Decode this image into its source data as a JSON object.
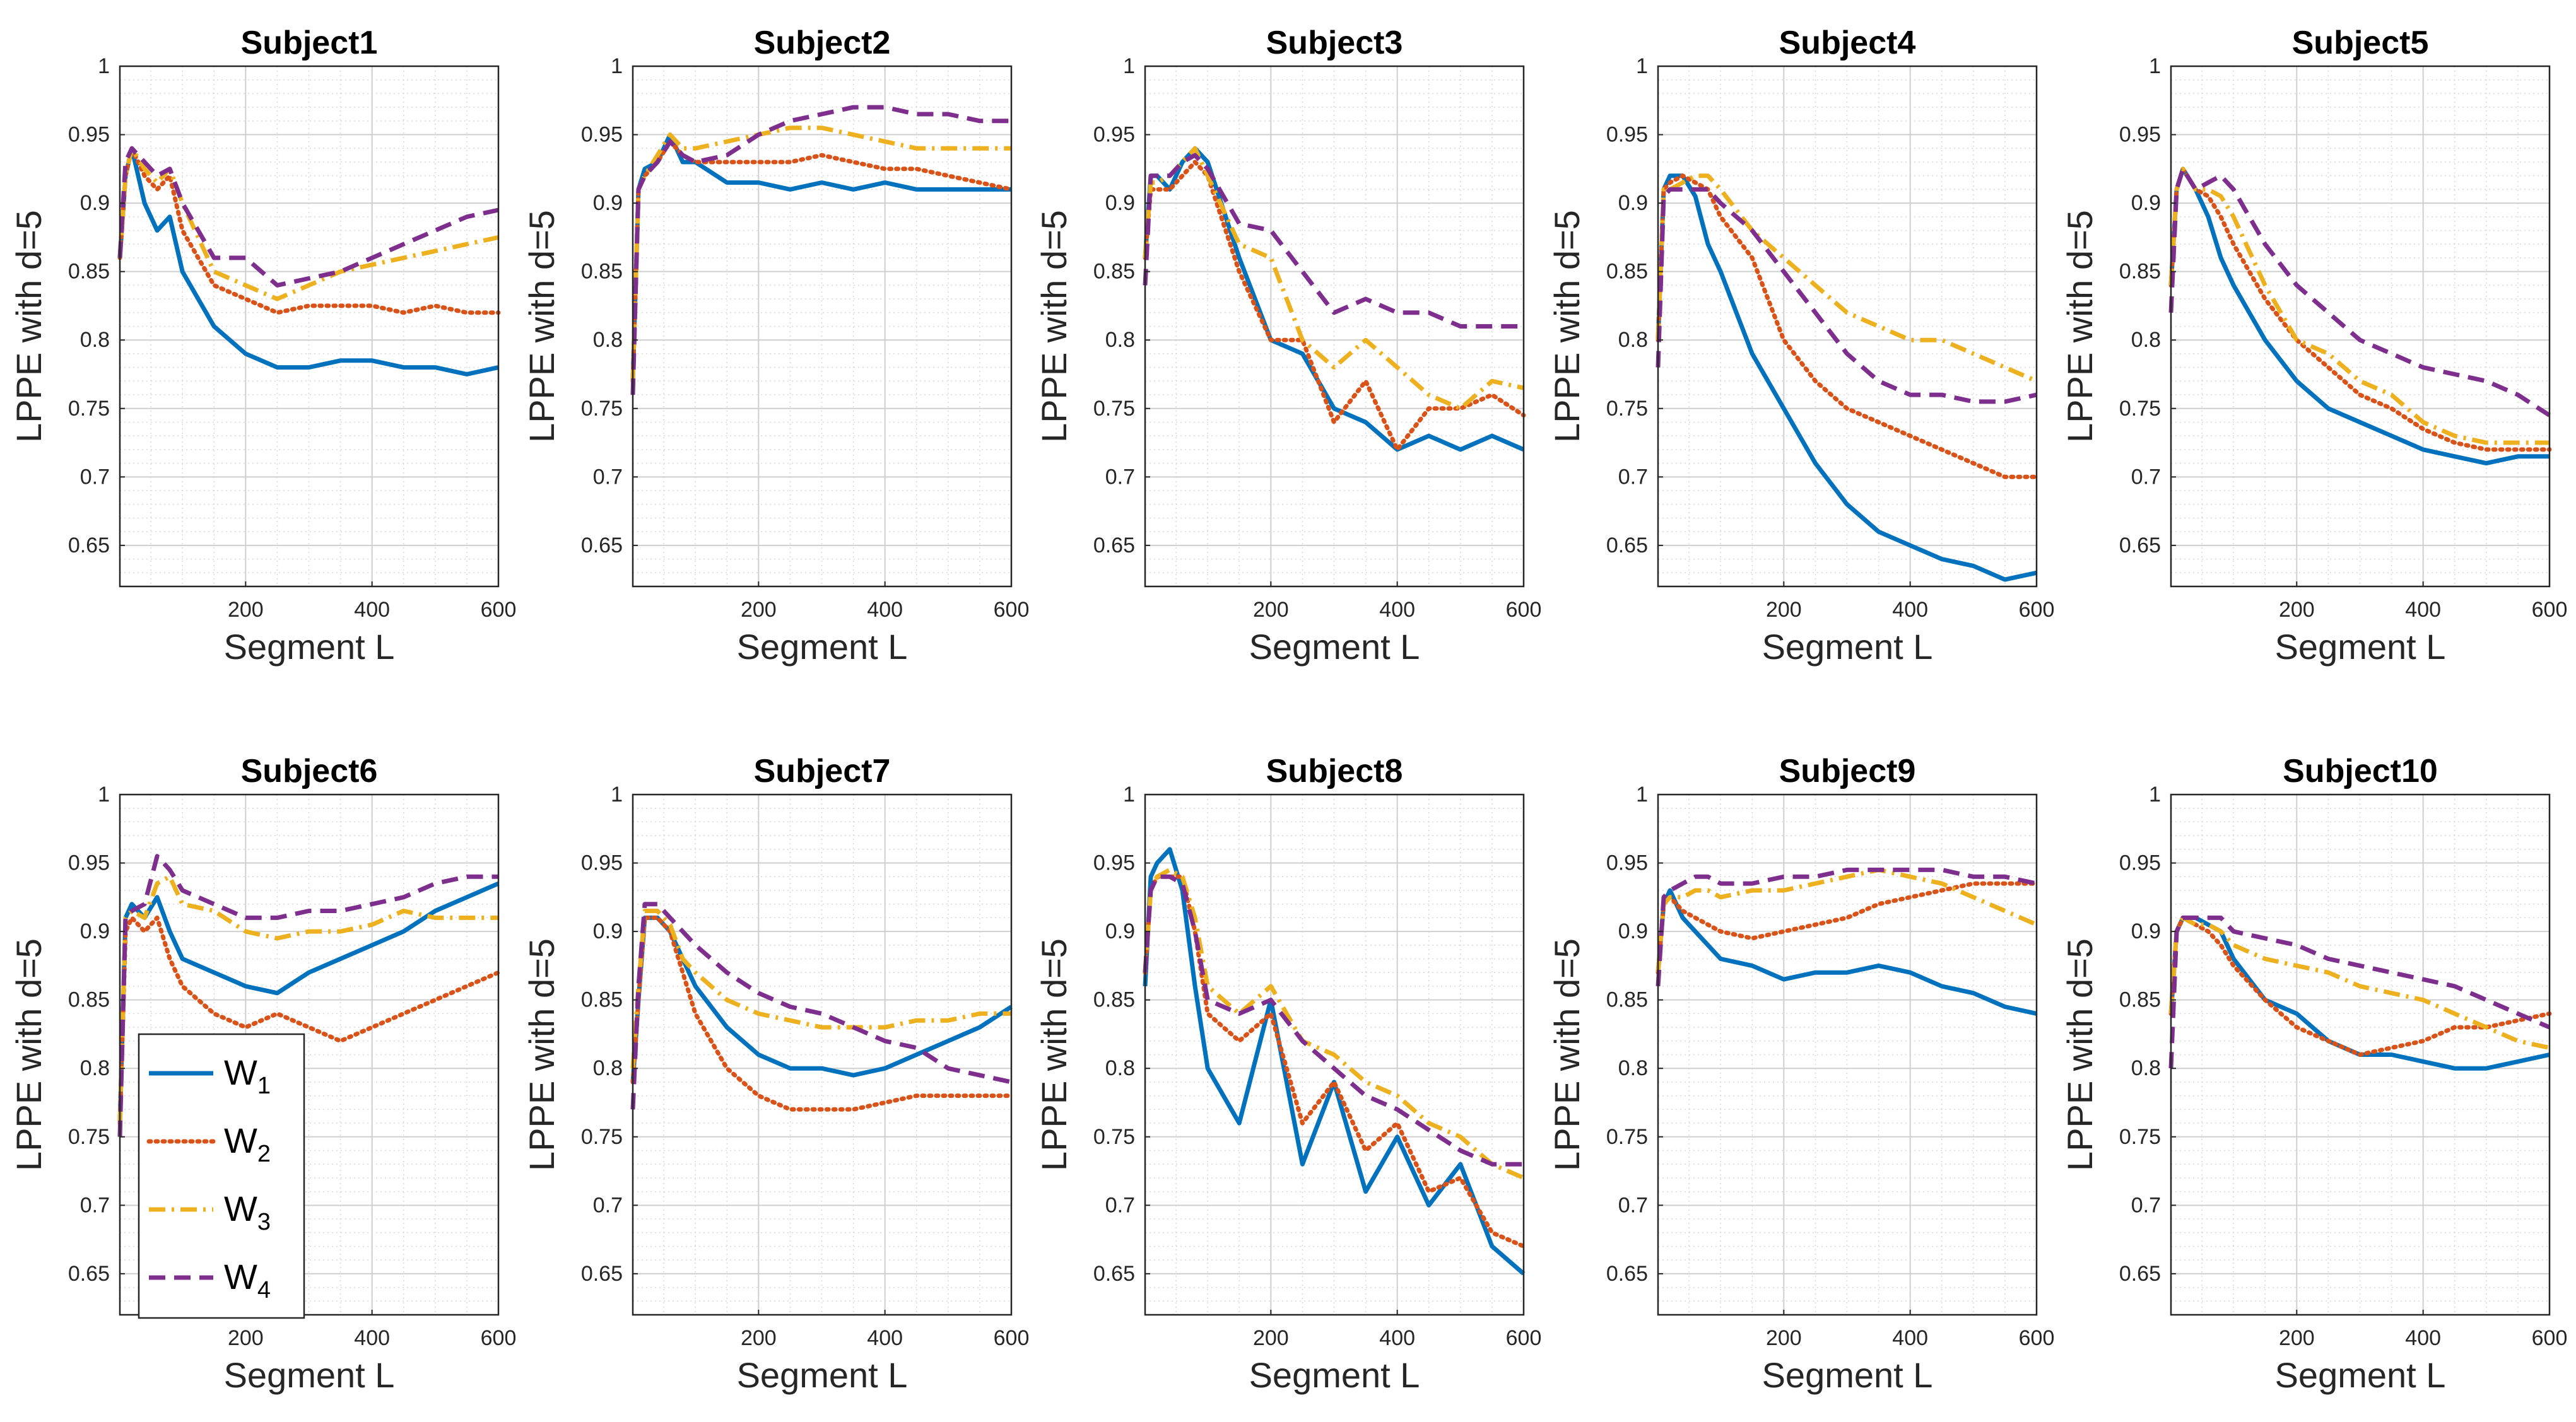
{
  "figure": {
    "ylabel": "LPPE with d=5",
    "xlabel": "Segment L"
  },
  "chart_data": {
    "type": "line",
    "layout": "2x5 grid of subplots",
    "xlim": [
      1,
      600
    ],
    "ylim": [
      0.62,
      1.0
    ],
    "xticks": [
      200,
      400,
      600
    ],
    "xtick_labels": [
      "200",
      "400",
      "600"
    ],
    "yticks": [
      0.65,
      0.7,
      0.75,
      0.8,
      0.85,
      0.9,
      0.95,
      1
    ],
    "ytick_labels": [
      "0.65",
      "0.7",
      "0.75",
      "0.8",
      "0.85",
      "0.9",
      "0.95",
      "1"
    ],
    "grid": true,
    "minor_grid": true,
    "x": [
      1,
      10,
      20,
      40,
      60,
      80,
      100,
      150,
      200,
      250,
      300,
      350,
      400,
      450,
      500,
      550,
      600
    ],
    "legend": {
      "placement": "lower-left of subplot 6",
      "entries": [
        {
          "base": "W",
          "sub": "1"
        },
        {
          "base": "W",
          "sub": "2"
        },
        {
          "base": "W",
          "sub": "3"
        },
        {
          "base": "W",
          "sub": "4"
        }
      ]
    },
    "series_styles": [
      {
        "name": "W1",
        "color": "#0072BD",
        "dash": "solid"
      },
      {
        "name": "W2",
        "color": "#D95319",
        "dash": "dotted"
      },
      {
        "name": "W3",
        "color": "#EDB120",
        "dash": "dashdot"
      },
      {
        "name": "W4",
        "color": "#7E2F8E",
        "dash": "dashed"
      }
    ],
    "subplots": [
      {
        "title": "Subject1",
        "series": [
          {
            "name": "W1",
            "values": [
              0.86,
              0.92,
              0.94,
              0.9,
              0.88,
              0.89,
              0.85,
              0.81,
              0.79,
              0.78,
              0.78,
              0.785,
              0.785,
              0.78,
              0.78,
              0.775,
              0.78
            ]
          },
          {
            "name": "W2",
            "values": [
              0.86,
              0.92,
              0.94,
              0.92,
              0.91,
              0.92,
              0.88,
              0.84,
              0.83,
              0.82,
              0.825,
              0.825,
              0.825,
              0.82,
              0.825,
              0.82,
              0.82
            ]
          },
          {
            "name": "W3",
            "values": [
              0.86,
              0.92,
              0.94,
              0.925,
              0.915,
              0.925,
              0.9,
              0.85,
              0.84,
              0.83,
              0.84,
              0.85,
              0.855,
              0.86,
              0.865,
              0.87,
              0.875
            ]
          },
          {
            "name": "W4",
            "values": [
              0.86,
              0.93,
              0.94,
              0.93,
              0.92,
              0.925,
              0.9,
              0.86,
              0.86,
              0.84,
              0.845,
              0.85,
              0.86,
              0.87,
              0.88,
              0.89,
              0.895
            ]
          }
        ]
      },
      {
        "title": "Subject2",
        "series": [
          {
            "name": "W1",
            "values": [
              0.77,
              0.91,
              0.925,
              0.93,
              0.95,
              0.93,
              0.93,
              0.915,
              0.915,
              0.91,
              0.915,
              0.91,
              0.915,
              0.91,
              0.91,
              0.91,
              0.91
            ]
          },
          {
            "name": "W2",
            "values": [
              0.77,
              0.91,
              0.92,
              0.93,
              0.945,
              0.935,
              0.93,
              0.93,
              0.93,
              0.93,
              0.935,
              0.93,
              0.925,
              0.925,
              0.92,
              0.915,
              0.91
            ]
          },
          {
            "name": "W3",
            "values": [
              0.77,
              0.91,
              0.92,
              0.935,
              0.95,
              0.94,
              0.94,
              0.945,
              0.95,
              0.955,
              0.955,
              0.95,
              0.945,
              0.94,
              0.94,
              0.94,
              0.94
            ]
          },
          {
            "name": "W4",
            "values": [
              0.76,
              0.91,
              0.92,
              0.93,
              0.945,
              0.935,
              0.93,
              0.935,
              0.95,
              0.96,
              0.965,
              0.97,
              0.97,
              0.965,
              0.965,
              0.96,
              0.96
            ]
          }
        ]
      },
      {
        "title": "Subject3",
        "series": [
          {
            "name": "W1",
            "values": [
              0.86,
              0.92,
              0.92,
              0.91,
              0.93,
              0.94,
              0.93,
              0.86,
              0.8,
              0.79,
              0.75,
              0.74,
              0.72,
              0.73,
              0.72,
              0.73,
              0.72
            ]
          },
          {
            "name": "W2",
            "values": [
              0.86,
              0.91,
              0.91,
              0.91,
              0.92,
              0.93,
              0.92,
              0.85,
              0.8,
              0.8,
              0.74,
              0.77,
              0.72,
              0.75,
              0.75,
              0.76,
              0.745
            ]
          },
          {
            "name": "W3",
            "values": [
              0.86,
              0.915,
              0.915,
              0.92,
              0.93,
              0.94,
              0.92,
              0.87,
              0.86,
              0.8,
              0.78,
              0.8,
              0.78,
              0.76,
              0.75,
              0.77,
              0.765
            ]
          },
          {
            "name": "W4",
            "values": [
              0.84,
              0.92,
              0.92,
              0.92,
              0.93,
              0.935,
              0.925,
              0.885,
              0.88,
              0.85,
              0.82,
              0.83,
              0.82,
              0.82,
              0.81,
              0.81,
              0.81
            ]
          }
        ]
      },
      {
        "title": "Subject4",
        "series": [
          {
            "name": "W1",
            "values": [
              0.8,
              0.91,
              0.92,
              0.92,
              0.905,
              0.87,
              0.85,
              0.79,
              0.75,
              0.71,
              0.68,
              0.66,
              0.65,
              0.64,
              0.635,
              0.625,
              0.63
            ]
          },
          {
            "name": "W2",
            "values": [
              0.8,
              0.91,
              0.915,
              0.92,
              0.915,
              0.91,
              0.89,
              0.86,
              0.8,
              0.77,
              0.75,
              0.74,
              0.73,
              0.72,
              0.71,
              0.7,
              0.7
            ]
          },
          {
            "name": "W3",
            "values": [
              0.8,
              0.91,
              0.91,
              0.915,
              0.92,
              0.92,
              0.91,
              0.88,
              0.86,
              0.84,
              0.82,
              0.81,
              0.8,
              0.8,
              0.79,
              0.78,
              0.77
            ]
          },
          {
            "name": "W4",
            "values": [
              0.78,
              0.905,
              0.91,
              0.91,
              0.91,
              0.91,
              0.9,
              0.88,
              0.85,
              0.82,
              0.79,
              0.77,
              0.76,
              0.76,
              0.755,
              0.755,
              0.76
            ]
          }
        ]
      },
      {
        "title": "Subject5",
        "series": [
          {
            "name": "W1",
            "values": [
              0.84,
              0.91,
              0.925,
              0.91,
              0.89,
              0.86,
              0.84,
              0.8,
              0.77,
              0.75,
              0.74,
              0.73,
              0.72,
              0.715,
              0.71,
              0.715,
              0.715
            ]
          },
          {
            "name": "W2",
            "values": [
              0.84,
              0.91,
              0.925,
              0.91,
              0.905,
              0.89,
              0.87,
              0.83,
              0.8,
              0.78,
              0.76,
              0.75,
              0.735,
              0.725,
              0.72,
              0.72,
              0.72
            ]
          },
          {
            "name": "W3",
            "values": [
              0.84,
              0.91,
              0.925,
              0.91,
              0.91,
              0.905,
              0.89,
              0.84,
              0.8,
              0.79,
              0.77,
              0.76,
              0.74,
              0.73,
              0.725,
              0.725,
              0.725
            ]
          },
          {
            "name": "W4",
            "values": [
              0.82,
              0.91,
              0.925,
              0.91,
              0.915,
              0.92,
              0.91,
              0.87,
              0.84,
              0.82,
              0.8,
              0.79,
              0.78,
              0.775,
              0.77,
              0.76,
              0.745
            ]
          }
        ]
      },
      {
        "title": "Subject6",
        "series": [
          {
            "name": "W1",
            "values": [
              0.76,
              0.91,
              0.92,
              0.91,
              0.925,
              0.9,
              0.88,
              0.87,
              0.86,
              0.855,
              0.87,
              0.88,
              0.89,
              0.9,
              0.915,
              0.925,
              0.935
            ]
          },
          {
            "name": "W2",
            "values": [
              0.76,
              0.9,
              0.91,
              0.9,
              0.91,
              0.88,
              0.86,
              0.84,
              0.83,
              0.84,
              0.83,
              0.82,
              0.83,
              0.84,
              0.85,
              0.86,
              0.87
            ]
          },
          {
            "name": "W3",
            "values": [
              0.76,
              0.91,
              0.915,
              0.91,
              0.935,
              0.94,
              0.92,
              0.915,
              0.9,
              0.895,
              0.9,
              0.9,
              0.905,
              0.915,
              0.91,
              0.91,
              0.91
            ]
          },
          {
            "name": "W4",
            "values": [
              0.75,
              0.91,
              0.915,
              0.92,
              0.955,
              0.945,
              0.93,
              0.92,
              0.91,
              0.91,
              0.915,
              0.915,
              0.92,
              0.925,
              0.935,
              0.94,
              0.94
            ]
          }
        ]
      },
      {
        "title": "Subject7",
        "series": [
          {
            "name": "W1",
            "values": [
              0.79,
              0.85,
              0.91,
              0.91,
              0.9,
              0.88,
              0.86,
              0.83,
              0.81,
              0.8,
              0.8,
              0.795,
              0.8,
              0.81,
              0.82,
              0.83,
              0.845
            ]
          },
          {
            "name": "W2",
            "values": [
              0.79,
              0.85,
              0.91,
              0.91,
              0.9,
              0.87,
              0.84,
              0.8,
              0.78,
              0.77,
              0.77,
              0.77,
              0.775,
              0.78,
              0.78,
              0.78,
              0.78
            ]
          },
          {
            "name": "W3",
            "values": [
              0.8,
              0.86,
              0.915,
              0.915,
              0.905,
              0.88,
              0.87,
              0.85,
              0.84,
              0.835,
              0.83,
              0.83,
              0.83,
              0.835,
              0.835,
              0.84,
              0.84
            ]
          },
          {
            "name": "W4",
            "values": [
              0.77,
              0.86,
              0.92,
              0.92,
              0.91,
              0.9,
              0.89,
              0.87,
              0.855,
              0.845,
              0.84,
              0.83,
              0.82,
              0.815,
              0.8,
              0.795,
              0.79
            ]
          }
        ]
      },
      {
        "title": "Subject8",
        "series": [
          {
            "name": "W1",
            "values": [
              0.86,
              0.94,
              0.95,
              0.96,
              0.93,
              0.86,
              0.8,
              0.76,
              0.85,
              0.73,
              0.79,
              0.71,
              0.75,
              0.7,
              0.73,
              0.67,
              0.65
            ]
          },
          {
            "name": "W2",
            "values": [
              0.87,
              0.93,
              0.94,
              0.94,
              0.94,
              0.9,
              0.84,
              0.82,
              0.84,
              0.76,
              0.79,
              0.74,
              0.76,
              0.71,
              0.72,
              0.68,
              0.67
            ]
          },
          {
            "name": "W3",
            "values": [
              0.87,
              0.93,
              0.94,
              0.945,
              0.94,
              0.91,
              0.86,
              0.84,
              0.86,
              0.82,
              0.81,
              0.79,
              0.78,
              0.76,
              0.75,
              0.73,
              0.72
            ]
          },
          {
            "name": "W4",
            "values": [
              0.87,
              0.93,
              0.94,
              0.94,
              0.935,
              0.9,
              0.85,
              0.84,
              0.85,
              0.82,
              0.8,
              0.78,
              0.77,
              0.755,
              0.74,
              0.73,
              0.73
            ]
          }
        ]
      },
      {
        "title": "Subject9",
        "series": [
          {
            "name": "W1",
            "values": [
              0.87,
              0.92,
              0.93,
              0.91,
              0.9,
              0.89,
              0.88,
              0.875,
              0.865,
              0.87,
              0.87,
              0.875,
              0.87,
              0.86,
              0.855,
              0.845,
              0.84
            ]
          },
          {
            "name": "W2",
            "values": [
              0.87,
              0.92,
              0.925,
              0.915,
              0.91,
              0.905,
              0.9,
              0.895,
              0.9,
              0.905,
              0.91,
              0.92,
              0.925,
              0.93,
              0.935,
              0.935,
              0.935
            ]
          },
          {
            "name": "W3",
            "values": [
              0.87,
              0.92,
              0.925,
              0.925,
              0.93,
              0.93,
              0.925,
              0.93,
              0.93,
              0.935,
              0.94,
              0.945,
              0.94,
              0.935,
              0.925,
              0.915,
              0.905
            ]
          },
          {
            "name": "W4",
            "values": [
              0.86,
              0.925,
              0.93,
              0.935,
              0.94,
              0.94,
              0.935,
              0.935,
              0.94,
              0.94,
              0.945,
              0.945,
              0.945,
              0.945,
              0.94,
              0.94,
              0.935
            ]
          }
        ]
      },
      {
        "title": "Subject10",
        "series": [
          {
            "name": "W1",
            "values": [
              0.84,
              0.9,
              0.91,
              0.91,
              0.905,
              0.9,
              0.88,
              0.85,
              0.84,
              0.82,
              0.81,
              0.81,
              0.805,
              0.8,
              0.8,
              0.805,
              0.81
            ]
          },
          {
            "name": "W2",
            "values": [
              0.84,
              0.9,
              0.91,
              0.905,
              0.9,
              0.89,
              0.875,
              0.85,
              0.83,
              0.82,
              0.81,
              0.815,
              0.82,
              0.83,
              0.83,
              0.835,
              0.84
            ]
          },
          {
            "name": "W3",
            "values": [
              0.84,
              0.9,
              0.91,
              0.905,
              0.905,
              0.9,
              0.89,
              0.88,
              0.875,
              0.87,
              0.86,
              0.855,
              0.85,
              0.84,
              0.83,
              0.82,
              0.815
            ]
          },
          {
            "name": "W4",
            "values": [
              0.8,
              0.9,
              0.91,
              0.91,
              0.91,
              0.91,
              0.9,
              0.895,
              0.89,
              0.88,
              0.875,
              0.87,
              0.865,
              0.86,
              0.85,
              0.84,
              0.83
            ]
          }
        ]
      }
    ]
  }
}
